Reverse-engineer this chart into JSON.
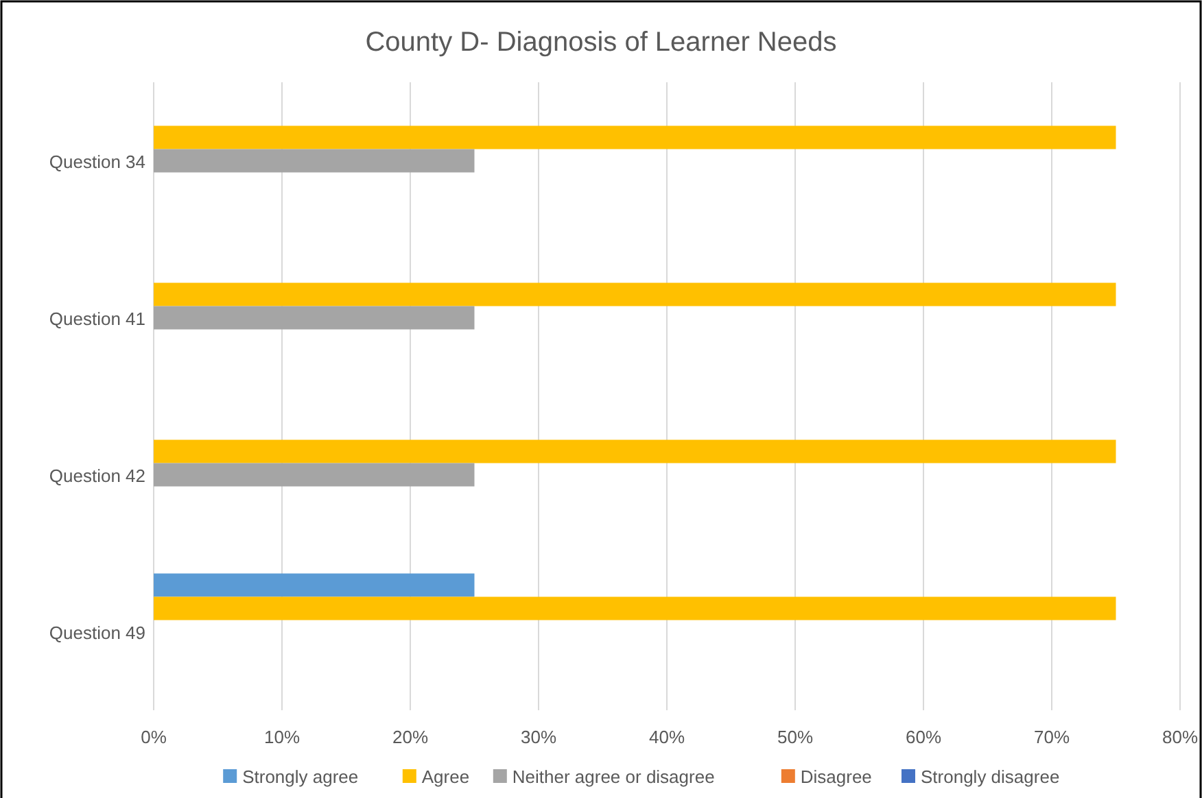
{
  "chart_data": {
    "type": "bar",
    "orientation": "horizontal",
    "title": "County D- Diagnosis of Learner Needs",
    "categories": [
      "Question 34",
      "Question 41",
      "Question 42",
      "Question 49"
    ],
    "series": [
      {
        "name": "Strongly agree",
        "color": "#5b9bd5",
        "values": [
          0,
          0,
          0,
          25
        ]
      },
      {
        "name": "Agree",
        "color": "#ffc000",
        "values": [
          75,
          75,
          75,
          75
        ]
      },
      {
        "name": "Neither agree or disagree",
        "color": "#a5a5a5",
        "values": [
          25,
          25,
          25,
          0
        ]
      },
      {
        "name": "Disagree",
        "color": "#ed7d31",
        "values": [
          0,
          0,
          0,
          0
        ]
      },
      {
        "name": "Strongly disagree",
        "color": "#4472c4",
        "values": [
          0,
          0,
          0,
          0
        ]
      }
    ],
    "xlim": [
      0,
      80
    ],
    "xticks": [
      {
        "value": 0,
        "label": "0%"
      },
      {
        "value": 10,
        "label": "10%"
      },
      {
        "value": 20,
        "label": "20%"
      },
      {
        "value": 30,
        "label": "30%"
      },
      {
        "value": 40,
        "label": "40%"
      },
      {
        "value": 50,
        "label": "50%"
      },
      {
        "value": 60,
        "label": "60%"
      },
      {
        "value": 70,
        "label": "70%"
      },
      {
        "value": 80,
        "label": "80%"
      }
    ],
    "grid": "x",
    "legend": "bottom"
  }
}
